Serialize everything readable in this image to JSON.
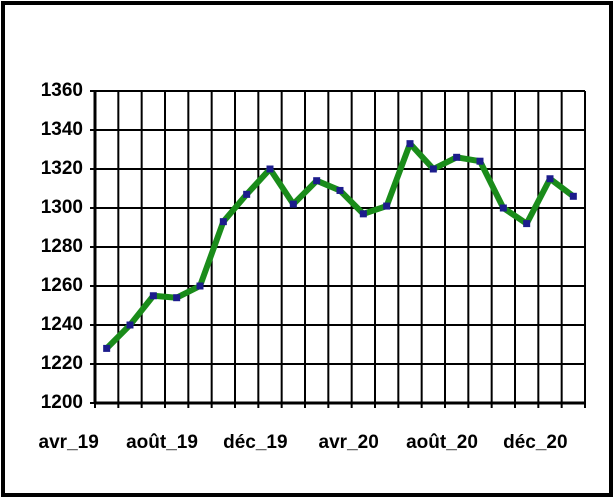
{
  "chart_data": {
    "type": "line",
    "categories": [
      "avr_19",
      null,
      null,
      null,
      "août_19",
      null,
      null,
      null,
      "déc_19",
      null,
      null,
      null,
      "avr_20",
      null,
      null,
      null,
      "août_20",
      null,
      null,
      null,
      "déc_20"
    ],
    "series": [
      {
        "color": "#1a8c1a",
        "marker_color": "#1c1c8c",
        "values": [
          1228,
          1240,
          1255,
          1254,
          1260,
          1293,
          1307,
          1320,
          1302,
          1314,
          1309,
          1297,
          1301,
          1333,
          1320,
          1326,
          1324,
          1300,
          1292,
          1315,
          1306
        ]
      }
    ],
    "ylim": [
      1200,
      1360
    ],
    "yticks": [
      1200,
      1220,
      1240,
      1260,
      1280,
      1300,
      1320,
      1340,
      1360
    ],
    "grid": true
  }
}
